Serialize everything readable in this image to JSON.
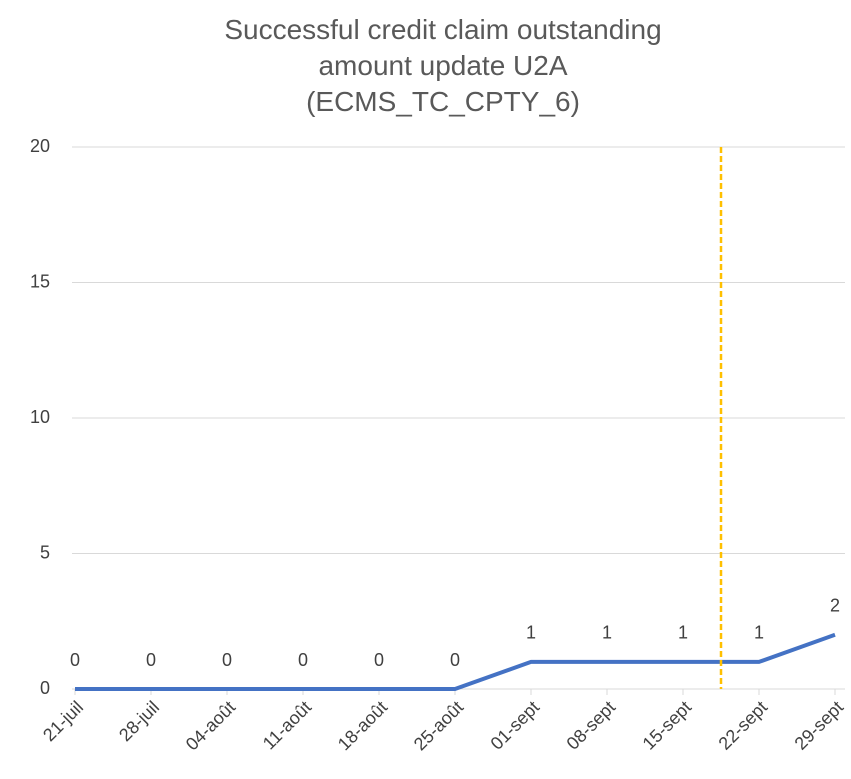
{
  "chart_data": {
    "type": "line",
    "title": "Successful credit claim outstanding\namount update U2A\n(ECMS_TC_CPTY_6)",
    "categories": [
      "21-juil",
      "28-juil",
      "04-août",
      "11-août",
      "18-août",
      "25-août",
      "01-sept",
      "08-sept",
      "15-sept",
      "22-sept",
      "29-sept"
    ],
    "values": [
      0,
      0,
      0,
      0,
      0,
      0,
      1,
      1,
      1,
      1,
      2
    ],
    "color": "#4472c4",
    "ylim": [
      0,
      20
    ],
    "yticks": [
      0,
      5,
      10,
      15,
      20
    ],
    "grid": true,
    "reference_line": {
      "x": 8.5,
      "color": "#ffc000"
    }
  }
}
